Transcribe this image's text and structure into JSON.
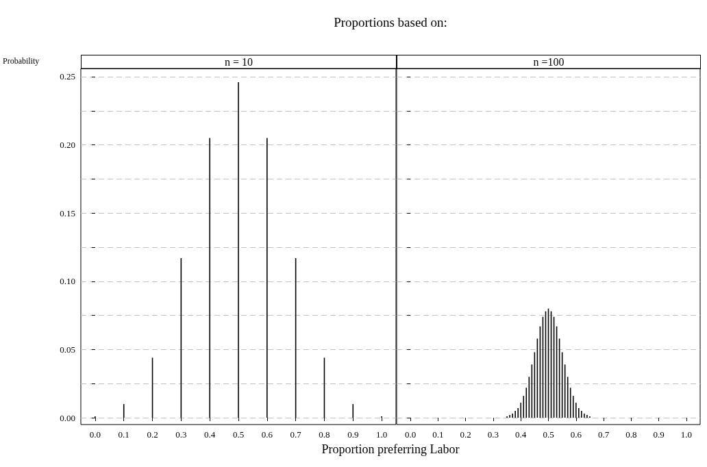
{
  "chart_data": [
    {
      "type": "bar",
      "title": "Proportions based on:",
      "subtitle": "n = 10",
      "ylabel": "Probability",
      "xlabel": "Proportion preferring Labor",
      "x": [
        0,
        0.1,
        0.2,
        0.3,
        0.4,
        0.5,
        0.6,
        0.7,
        0.8,
        0.9,
        1
      ],
      "values": [
        0.001,
        0.01,
        0.044,
        0.117,
        0.205,
        0.246,
        0.205,
        0.117,
        0.044,
        0.01,
        0.001
      ],
      "color": "#000000",
      "xlim": [
        -0.05,
        1.05
      ],
      "xticks": [
        {
          "value": 0,
          "label": "0.0"
        },
        {
          "value": 0.1,
          "label": "0.1"
        },
        {
          "value": 0.2,
          "label": "0.2"
        },
        {
          "value": 0.3,
          "label": "0.3"
        },
        {
          "value": 0.4,
          "label": "0.4"
        },
        {
          "value": 0.5,
          "label": "0.5"
        },
        {
          "value": 0.6,
          "label": "0.6"
        },
        {
          "value": 0.7,
          "label": "0.7"
        },
        {
          "value": 0.8,
          "label": "0.8"
        },
        {
          "value": 0.9,
          "label": "0.9"
        },
        {
          "value": 1,
          "label": "1.0"
        }
      ],
      "ylim": [
        -0.005,
        0.256
      ],
      "yticks": [
        {
          "value": 0,
          "label": "0.00"
        },
        {
          "value": 0.025,
          "label": null
        },
        {
          "value": 0.05,
          "label": "0.05"
        },
        {
          "value": 0.075,
          "label": null
        },
        {
          "value": 0.1,
          "label": "0.10"
        },
        {
          "value": 0.125,
          "label": null
        },
        {
          "value": 0.15,
          "label": "0.15"
        },
        {
          "value": 0.175,
          "label": null
        },
        {
          "value": 0.2,
          "label": "0.20"
        },
        {
          "value": 0.225,
          "label": null
        },
        {
          "value": 0.25,
          "label": "0.25"
        }
      ],
      "grid": "y"
    },
    {
      "type": "bar",
      "subtitle": "n =100",
      "x": [
        0,
        0.01,
        0.02,
        0.03,
        0.04,
        0.05,
        0.06,
        0.07,
        0.08,
        0.09,
        0.1,
        0.11,
        0.12,
        0.13,
        0.14,
        0.15,
        0.16,
        0.17,
        0.18,
        0.19,
        0.2,
        0.21,
        0.22,
        0.23,
        0.24,
        0.25,
        0.26,
        0.27,
        0.28,
        0.29,
        0.3,
        0.31,
        0.32,
        0.33,
        0.34,
        0.35,
        0.36,
        0.37,
        0.38,
        0.39,
        0.4,
        0.41,
        0.42,
        0.43,
        0.44,
        0.45,
        0.46,
        0.47,
        0.48,
        0.49,
        0.5,
        0.51,
        0.52,
        0.53,
        0.54,
        0.55,
        0.56,
        0.57,
        0.58,
        0.59,
        0.6,
        0.61,
        0.62,
        0.63,
        0.64,
        0.65,
        0.66,
        0.67,
        0.68,
        0.69,
        0.7,
        0.71,
        0.72,
        0.73,
        0.74,
        0.75,
        0.76,
        0.77,
        0.78,
        0.79,
        0.8,
        0.81,
        0.82,
        0.83,
        0.84,
        0.85,
        0.86,
        0.87,
        0.88,
        0.89,
        0.9,
        0.91,
        0.92,
        0.93,
        0.94,
        0.95,
        0.96,
        0.97,
        0.98,
        0.99,
        1
      ],
      "values": [
        0,
        0,
        0,
        0,
        0,
        0,
        0,
        0,
        0,
        0,
        0,
        0,
        0,
        0,
        0,
        0,
        0,
        0,
        0,
        0,
        0,
        0,
        0,
        0,
        0,
        0,
        0,
        0,
        0,
        0,
        0,
        0,
        0,
        0,
        0,
        0.001,
        0.002,
        0.003,
        0.005,
        0.007,
        0.011,
        0.016,
        0.022,
        0.03,
        0.039,
        0.048,
        0.058,
        0.067,
        0.074,
        0.078,
        0.08,
        0.078,
        0.074,
        0.067,
        0.058,
        0.048,
        0.039,
        0.03,
        0.022,
        0.016,
        0.011,
        0.007,
        0.005,
        0.003,
        0.002,
        0.001,
        0,
        0,
        0,
        0,
        0,
        0,
        0,
        0,
        0,
        0,
        0,
        0,
        0,
        0,
        0,
        0,
        0,
        0,
        0,
        0,
        0,
        0,
        0,
        0,
        0,
        0,
        0,
        0,
        0,
        0,
        0,
        0,
        0,
        0,
        0
      ],
      "color": "#000000",
      "xlim": [
        -0.05,
        1.05
      ],
      "xticks": [
        {
          "value": 0,
          "label": "0.0"
        },
        {
          "value": 0.1,
          "label": "0.1"
        },
        {
          "value": 0.2,
          "label": "0.2"
        },
        {
          "value": 0.3,
          "label": "0.3"
        },
        {
          "value": 0.4,
          "label": "0.4"
        },
        {
          "value": 0.5,
          "label": "0.5"
        },
        {
          "value": 0.6,
          "label": "0.6"
        },
        {
          "value": 0.7,
          "label": "0.7"
        },
        {
          "value": 0.8,
          "label": "0.8"
        },
        {
          "value": 0.9,
          "label": "0.9"
        },
        {
          "value": 1,
          "label": "1.0"
        }
      ],
      "ylim": [
        -0.005,
        0.256
      ],
      "yticks": [
        {
          "value": 0,
          "label": null
        },
        {
          "value": 0.025,
          "label": null
        },
        {
          "value": 0.05,
          "label": null
        },
        {
          "value": 0.075,
          "label": null
        },
        {
          "value": 0.1,
          "label": null
        },
        {
          "value": 0.125,
          "label": null
        },
        {
          "value": 0.15,
          "label": null
        },
        {
          "value": 0.175,
          "label": null
        },
        {
          "value": 0.2,
          "label": null
        },
        {
          "value": 0.225,
          "label": null
        },
        {
          "value": 0.25,
          "label": null
        }
      ],
      "grid": "y",
      "tick_labels": "x"
    }
  ]
}
